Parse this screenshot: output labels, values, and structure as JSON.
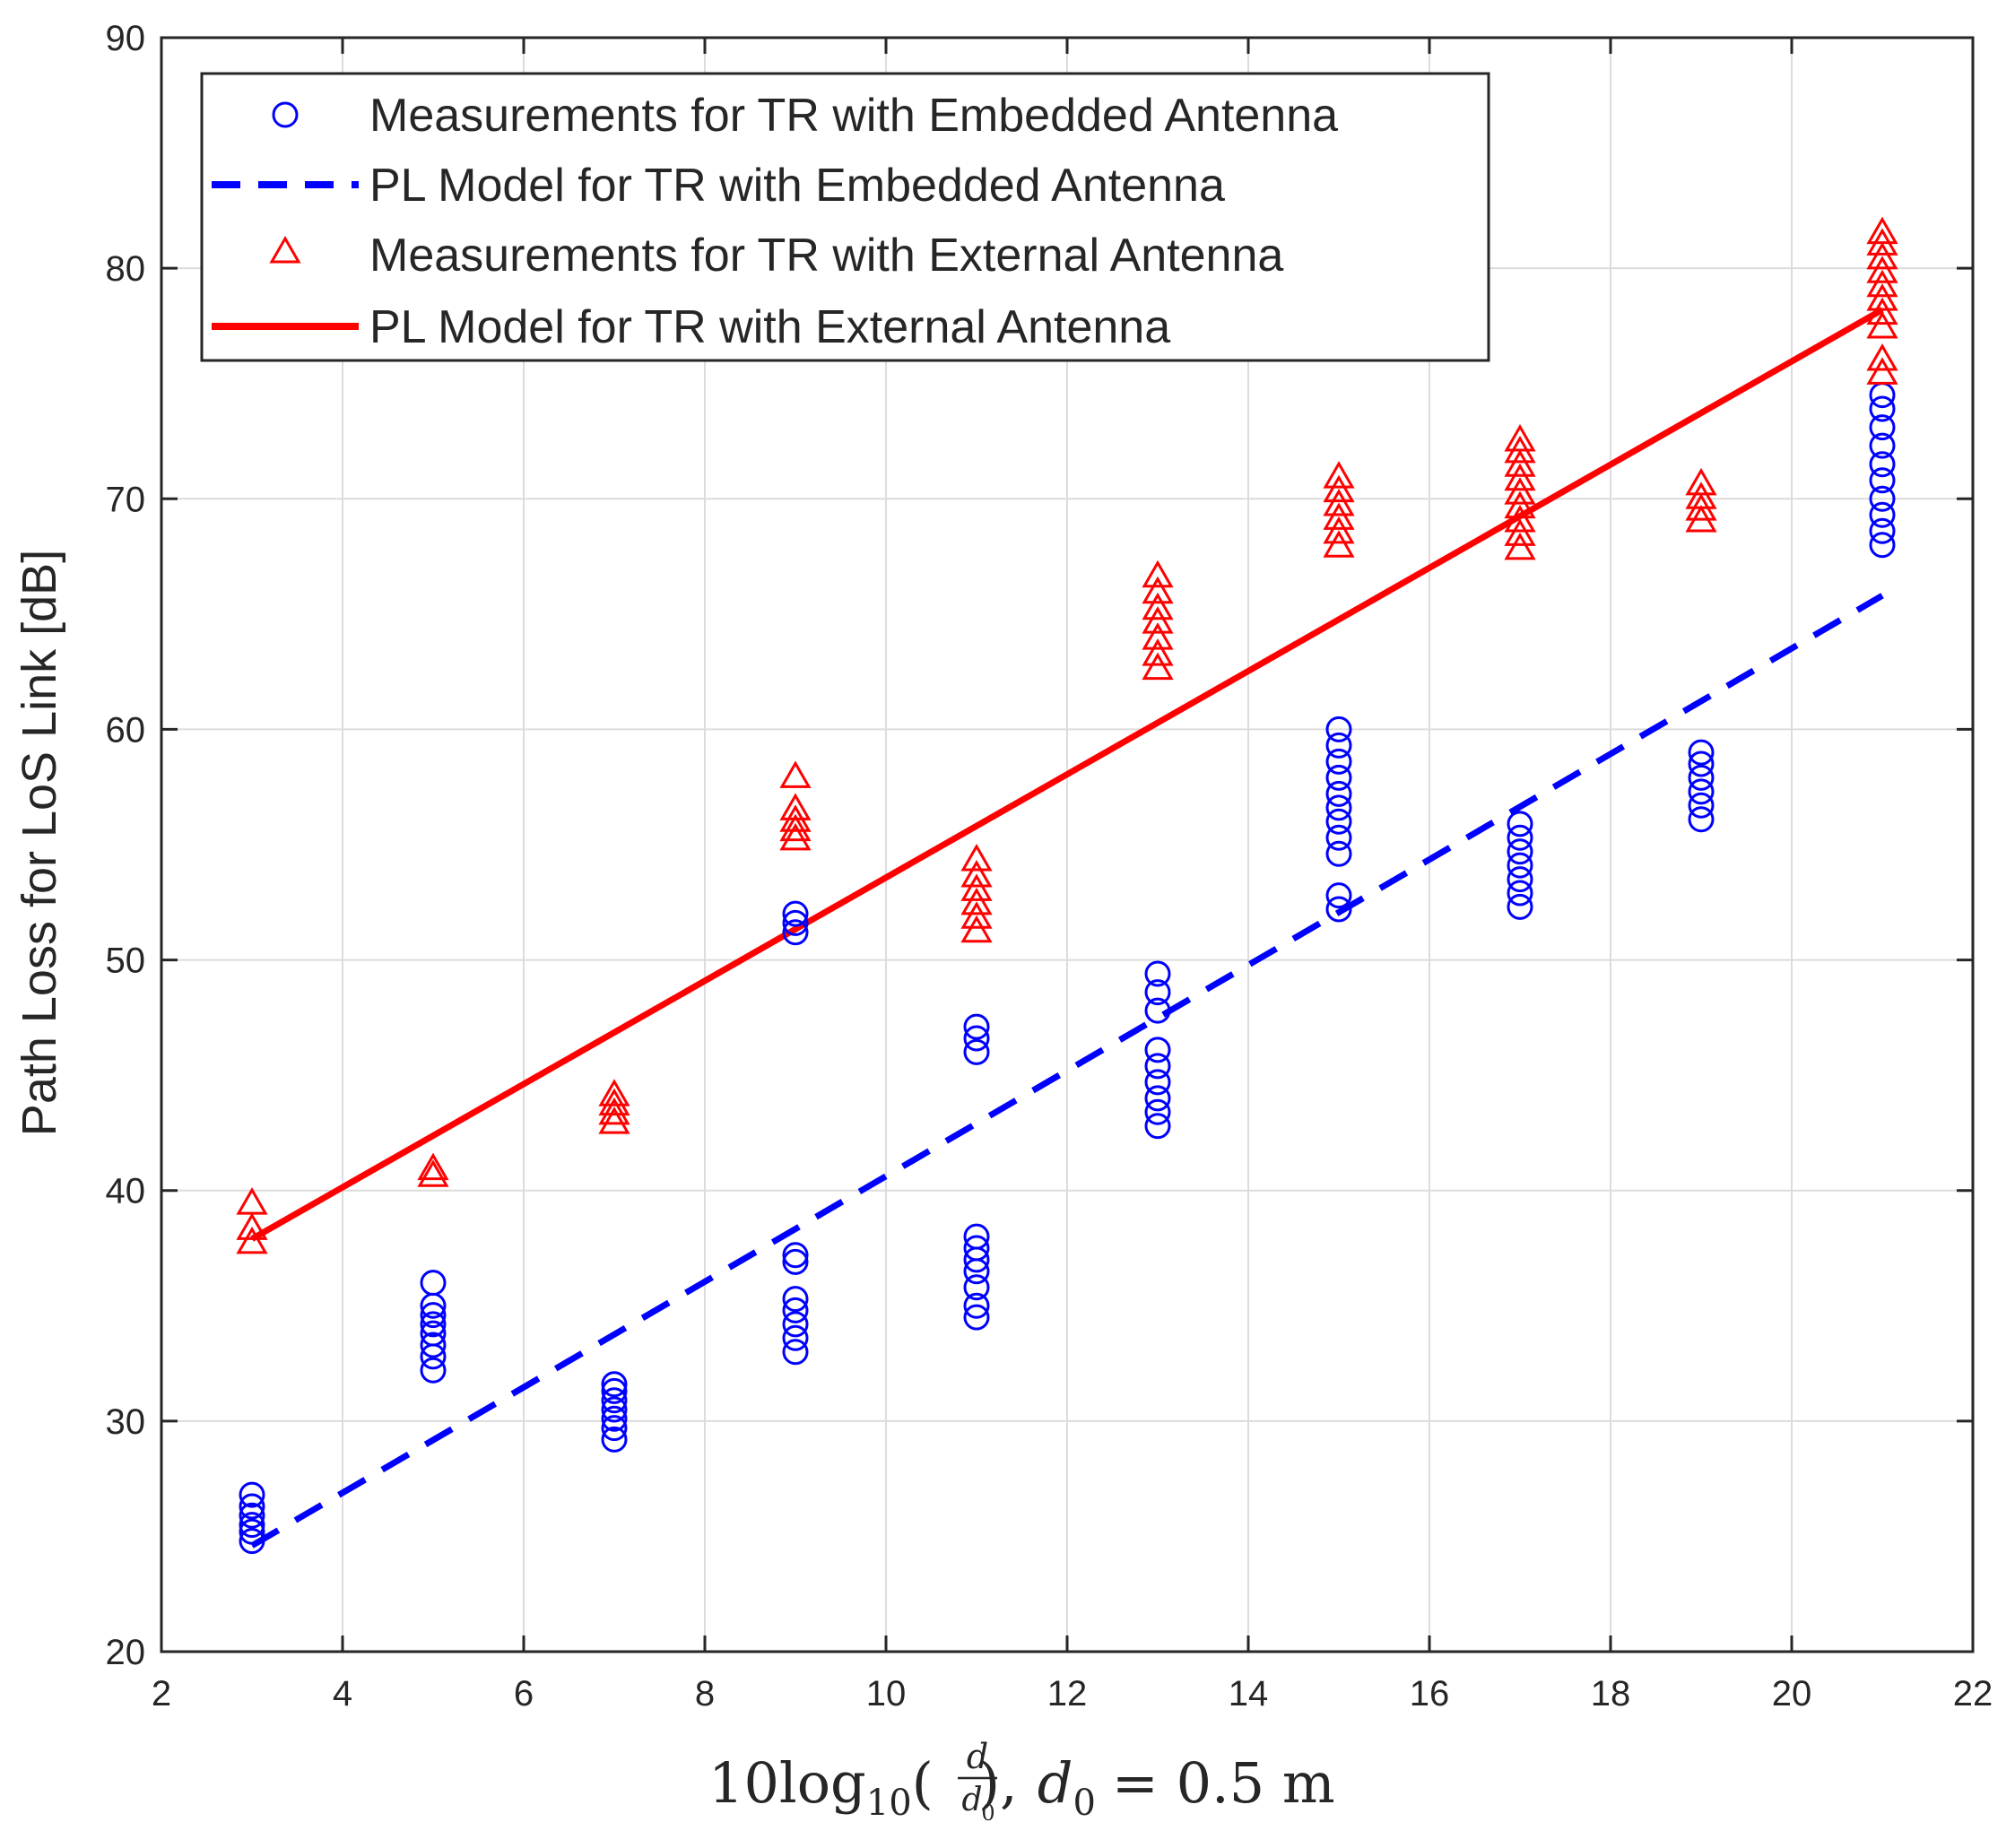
{
  "chart_data": {
    "type": "scatter",
    "title": "",
    "xlabel": {
      "prefix": "10log",
      "sub": "10",
      "frac_num": "d",
      "frac_den": "d",
      "frac_den_sub": "0",
      "suffix_var": "d",
      "suffix_sub": "0",
      "suffix_rest": "= 0.5 m"
    },
    "ylabel": "Path Loss for LoS Link [dB]",
    "xlim": [
      2,
      22
    ],
    "ylim": [
      20,
      90
    ],
    "xticks": [
      2,
      4,
      6,
      8,
      10,
      12,
      14,
      16,
      18,
      20,
      22
    ],
    "yticks": [
      20,
      30,
      40,
      50,
      60,
      70,
      80,
      90
    ],
    "grid": true,
    "legend_position": "top-left",
    "colors": {
      "embedded": "#0000ff",
      "external": "#ff0000",
      "axis": "#262626",
      "grid": "#dcdcdc"
    },
    "series": [
      {
        "name": "Measurements for TR with Embedded Antenna",
        "kind": "scatter",
        "marker": "circle",
        "color": "#0000ff",
        "points": [
          [
            3,
            24.8
          ],
          [
            3,
            25.2
          ],
          [
            3,
            25.5
          ],
          [
            3,
            25.9
          ],
          [
            3,
            26.3
          ],
          [
            3,
            26.8
          ],
          [
            5,
            32.2
          ],
          [
            5,
            32.8
          ],
          [
            5,
            33.3
          ],
          [
            5,
            33.8
          ],
          [
            5,
            34.2
          ],
          [
            5,
            34.6
          ],
          [
            5,
            35.0
          ],
          [
            5,
            36.0
          ],
          [
            7,
            29.2
          ],
          [
            7,
            29.7
          ],
          [
            7,
            30.1
          ],
          [
            7,
            30.5
          ],
          [
            7,
            30.9
          ],
          [
            7,
            31.3
          ],
          [
            7,
            31.6
          ],
          [
            9,
            33.0
          ],
          [
            9,
            33.6
          ],
          [
            9,
            34.2
          ],
          [
            9,
            34.8
          ],
          [
            9,
            35.3
          ],
          [
            9,
            36.9
          ],
          [
            9,
            37.2
          ],
          [
            9,
            51.2
          ],
          [
            9,
            51.6
          ],
          [
            9,
            52.0
          ],
          [
            11,
            34.5
          ],
          [
            11,
            35.0
          ],
          [
            11,
            35.8
          ],
          [
            11,
            36.5
          ],
          [
            11,
            37.0
          ],
          [
            11,
            37.5
          ],
          [
            11,
            38.0
          ],
          [
            11,
            46.0
          ],
          [
            11,
            46.6
          ],
          [
            11,
            47.1
          ],
          [
            13,
            42.8
          ],
          [
            13,
            43.4
          ],
          [
            13,
            44.0
          ],
          [
            13,
            44.7
          ],
          [
            13,
            45.4
          ],
          [
            13,
            46.1
          ],
          [
            13,
            47.8
          ],
          [
            13,
            48.6
          ],
          [
            13,
            49.4
          ],
          [
            15,
            52.2
          ],
          [
            15,
            52.8
          ],
          [
            15,
            54.6
          ],
          [
            15,
            55.3
          ],
          [
            15,
            56.0
          ],
          [
            15,
            56.6
          ],
          [
            15,
            57.2
          ],
          [
            15,
            57.9
          ],
          [
            15,
            58.6
          ],
          [
            15,
            59.3
          ],
          [
            15,
            60.0
          ],
          [
            17,
            52.3
          ],
          [
            17,
            52.9
          ],
          [
            17,
            53.5
          ],
          [
            17,
            54.1
          ],
          [
            17,
            54.7
          ],
          [
            17,
            55.3
          ],
          [
            17,
            55.9
          ],
          [
            19,
            56.1
          ],
          [
            19,
            56.7
          ],
          [
            19,
            57.3
          ],
          [
            19,
            57.9
          ],
          [
            19,
            58.5
          ],
          [
            19,
            59.0
          ],
          [
            21,
            68.0
          ],
          [
            21,
            68.6
          ],
          [
            21,
            69.3
          ],
          [
            21,
            70.0
          ],
          [
            21,
            70.8
          ],
          [
            21,
            71.5
          ],
          [
            21,
            72.3
          ],
          [
            21,
            73.1
          ],
          [
            21,
            73.9
          ],
          [
            21,
            74.5
          ]
        ]
      },
      {
        "name": "PL Model for TR with Embedded Antenna",
        "kind": "line",
        "style": "dashed",
        "color": "#0000ff",
        "x": [
          3,
          21
        ],
        "y": [
          24.6,
          65.8
        ]
      },
      {
        "name": "Measurements for TR with External Antenna",
        "kind": "scatter",
        "marker": "triangle",
        "color": "#ff0000",
        "points": [
          [
            3,
            37.7
          ],
          [
            3,
            38.3
          ],
          [
            3,
            39.4
          ],
          [
            5,
            40.6
          ],
          [
            5,
            40.9
          ],
          [
            7,
            42.9
          ],
          [
            7,
            43.3
          ],
          [
            7,
            43.7
          ],
          [
            7,
            44.1
          ],
          [
            9,
            55.2
          ],
          [
            9,
            55.6
          ],
          [
            9,
            56.0
          ],
          [
            9,
            56.5
          ],
          [
            9,
            57.9
          ],
          [
            11,
            51.2
          ],
          [
            11,
            51.8
          ],
          [
            11,
            52.4
          ],
          [
            11,
            53.0
          ],
          [
            11,
            53.6
          ],
          [
            11,
            54.3
          ],
          [
            13,
            62.6
          ],
          [
            13,
            63.2
          ],
          [
            13,
            63.9
          ],
          [
            13,
            64.6
          ],
          [
            13,
            65.2
          ],
          [
            13,
            65.9
          ],
          [
            13,
            66.6
          ],
          [
            15,
            67.9
          ],
          [
            15,
            68.5
          ],
          [
            15,
            69.1
          ],
          [
            15,
            69.7
          ],
          [
            15,
            70.3
          ],
          [
            15,
            70.9
          ],
          [
            17,
            67.8
          ],
          [
            17,
            68.4
          ],
          [
            17,
            69.0
          ],
          [
            17,
            69.6
          ],
          [
            17,
            70.2
          ],
          [
            17,
            70.8
          ],
          [
            17,
            71.4
          ],
          [
            17,
            72.0
          ],
          [
            17,
            72.5
          ],
          [
            19,
            69.0
          ],
          [
            19,
            69.5
          ],
          [
            19,
            70.0
          ],
          [
            19,
            70.6
          ],
          [
            21,
            75.4
          ],
          [
            21,
            76.0
          ],
          [
            21,
            77.4
          ],
          [
            21,
            78.0
          ],
          [
            21,
            78.6
          ],
          [
            21,
            79.2
          ],
          [
            21,
            79.8
          ],
          [
            21,
            80.4
          ],
          [
            21,
            81.0
          ],
          [
            21,
            81.5
          ]
        ]
      },
      {
        "name": "PL Model for TR with External Antenna",
        "kind": "line",
        "style": "solid",
        "color": "#ff0000",
        "x": [
          3,
          21
        ],
        "y": [
          37.9,
          78.2
        ]
      }
    ]
  }
}
